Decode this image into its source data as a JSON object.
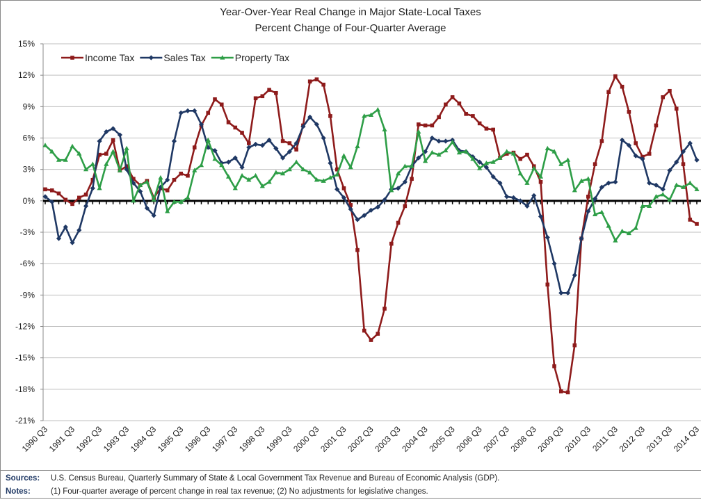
{
  "chart_data": {
    "type": "line",
    "title": "Year-Over-Year Real Change in Major State-Local Taxes",
    "subtitle": "Percent Change of Four-Quarter Average",
    "categories": [
      "1990 Q3",
      null,
      null,
      null,
      "1991 Q3",
      null,
      null,
      null,
      "1992 Q3",
      null,
      null,
      null,
      "1993 Q3",
      null,
      null,
      null,
      "1994 Q3",
      null,
      null,
      null,
      "1995 Q3",
      null,
      null,
      null,
      "1996 Q3",
      null,
      null,
      null,
      "1997 Q3",
      null,
      null,
      null,
      "1998 Q3",
      null,
      null,
      null,
      "1999 Q3",
      null,
      null,
      null,
      "2000 Q3",
      null,
      null,
      null,
      "2001 Q3",
      null,
      null,
      null,
      "2002 Q3",
      null,
      null,
      null,
      "2003 Q3",
      null,
      null,
      null,
      "2004 Q3",
      null,
      null,
      null,
      "2005 Q3",
      null,
      null,
      null,
      "2006 Q3",
      null,
      null,
      null,
      "2007 Q3",
      null,
      null,
      null,
      "2008 Q3",
      null,
      null,
      null,
      "2009 Q3",
      null,
      null,
      null,
      "2010 Q3",
      null,
      null,
      null,
      "2011 Q3",
      null,
      null,
      null,
      "2012 Q3",
      null,
      null,
      null,
      "2013 Q3",
      null,
      null,
      null,
      "2014 Q3"
    ],
    "series": [
      {
        "name": "Income Tax",
        "color": "#8e1b1b",
        "marker": "square",
        "values": [
          1.1,
          1.0,
          0.7,
          0.1,
          -0.3,
          0.3,
          0.6,
          2.0,
          4.4,
          4.5,
          5.8,
          2.9,
          3.3,
          2.1,
          1.5,
          1.9,
          0.3,
          1.2,
          1.0,
          2.0,
          2.6,
          2.4,
          5.1,
          7.2,
          8.4,
          9.7,
          9.2,
          7.5,
          7.0,
          6.5,
          5.5,
          9.8,
          10.0,
          10.6,
          10.3,
          5.7,
          5.5,
          4.9,
          7.2,
          11.4,
          11.6,
          11.1,
          8.1,
          3.0,
          1.2,
          -0.4,
          -4.7,
          -12.4,
          -13.3,
          -12.7,
          -10.3,
          -4.1,
          -2.1,
          -0.5,
          2.1,
          7.3,
          7.2,
          7.2,
          8.0,
          9.2,
          9.9,
          9.3,
          8.3,
          8.1,
          7.4,
          6.9,
          6.8,
          4.1,
          4.5,
          4.6,
          4.0,
          4.4,
          3.3,
          1.8,
          -8.0,
          -15.8,
          -18.2,
          -18.3,
          -13.8,
          -3.6,
          0.4,
          3.5,
          5.7,
          10.4,
          11.9,
          10.9,
          8.5,
          5.5,
          4.2,
          4.5,
          7.2,
          9.9,
          10.5,
          8.8,
          3.5,
          -1.8,
          -2.2
        ]
      },
      {
        "name": "Sales Tax",
        "color": "#1f3864",
        "marker": "diamond",
        "values": [
          0.4,
          -0.1,
          -3.6,
          -2.5,
          -4.0,
          -2.8,
          -0.5,
          1.2,
          5.7,
          6.6,
          6.9,
          6.3,
          3.0,
          1.7,
          0.9,
          -0.7,
          -1.4,
          1.3,
          2.0,
          5.7,
          8.4,
          8.6,
          8.6,
          7.3,
          5.1,
          4.8,
          3.6,
          3.7,
          4.1,
          3.2,
          5.1,
          5.4,
          5.3,
          5.8,
          5.0,
          4.1,
          4.7,
          5.5,
          7.1,
          8.0,
          7.3,
          6.0,
          3.6,
          1.1,
          0.3,
          -0.8,
          -1.8,
          -1.4,
          -0.9,
          -0.6,
          0.1,
          1.1,
          1.2,
          1.8,
          3.3,
          4.1,
          4.7,
          6.0,
          5.7,
          5.7,
          5.8,
          4.8,
          4.7,
          4.2,
          3.7,
          3.2,
          2.3,
          1.7,
          0.4,
          0.3,
          0.0,
          -0.5,
          0.5,
          -1.5,
          -3.5,
          -6.0,
          -8.8,
          -8.8,
          -7.1,
          -3.6,
          -1.0,
          0.2,
          1.3,
          1.7,
          1.8,
          5.8,
          5.3,
          4.3,
          4.0,
          1.7,
          1.5,
          1.1,
          2.9,
          3.7,
          4.7,
          5.5,
          3.9
        ]
      },
      {
        "name": "Property Tax",
        "color": "#2e9e47",
        "marker": "triangle",
        "values": [
          5.3,
          4.7,
          3.9,
          3.9,
          5.2,
          4.5,
          3.0,
          3.5,
          1.2,
          3.5,
          4.7,
          2.9,
          5.0,
          0.0,
          1.5,
          1.8,
          0.1,
          2.2,
          -1.0,
          -0.1,
          -0.1,
          0.3,
          2.9,
          3.4,
          5.8,
          4.0,
          3.4,
          2.3,
          1.2,
          2.4,
          2.0,
          2.4,
          1.4,
          1.8,
          2.7,
          2.6,
          3.0,
          3.7,
          3.0,
          2.7,
          2.0,
          1.9,
          2.2,
          2.5,
          4.3,
          3.2,
          5.2,
          8.1,
          8.2,
          8.7,
          6.8,
          1.0,
          2.6,
          3.3,
          3.3,
          6.6,
          3.8,
          4.6,
          4.4,
          4.8,
          5.6,
          4.6,
          4.7,
          4.0,
          3.1,
          3.6,
          3.7,
          4.1,
          4.7,
          4.5,
          2.6,
          1.7,
          3.1,
          2.3,
          5.0,
          4.7,
          3.5,
          3.9,
          1.0,
          1.9,
          2.1,
          -1.3,
          -1.1,
          -2.4,
          -3.8,
          -2.9,
          -3.1,
          -2.6,
          -0.5,
          -0.5,
          0.4,
          0.6,
          0.1,
          1.5,
          1.3,
          1.7,
          1.1
        ]
      }
    ],
    "ylim": [
      -21,
      15
    ],
    "yticks": [
      {
        "value": -21,
        "label": "-21%"
      },
      {
        "value": -18,
        "label": "-18%"
      },
      {
        "value": -15,
        "label": "-15%"
      },
      {
        "value": -12,
        "label": "-12%"
      },
      {
        "value": -9,
        "label": "-9%"
      },
      {
        "value": -6,
        "label": "-6%"
      },
      {
        "value": -3,
        "label": "-3%"
      },
      {
        "value": 0,
        "label": "0%"
      },
      {
        "value": 3,
        "label": "3%"
      },
      {
        "value": 6,
        "label": "6%"
      },
      {
        "value": 9,
        "label": "9%"
      },
      {
        "value": 12,
        "label": "12%"
      },
      {
        "value": 15,
        "label": "15%"
      }
    ],
    "grid": true,
    "legend": "upper left",
    "sources": {
      "label": "Sources:",
      "text": "U.S. Census Bureau, Quarterly Summary of State & Local Government Tax Revenue and Bureau of Economic Analysis (GDP)."
    },
    "notes": {
      "label": "Notes:",
      "text": "(1) Four-quarter average of percent change in real tax revenue; (2) No adjustments for legislative changes."
    }
  }
}
